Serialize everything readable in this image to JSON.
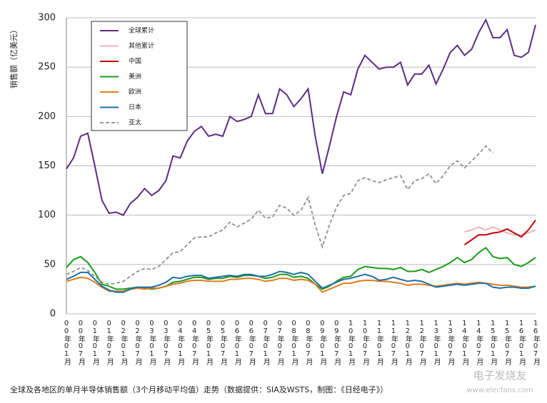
{
  "chart_data": {
    "type": "line",
    "y_label": "销售额（亿美元）",
    "caption": "全球及各地区的单月半导体销售额（3个月移动平均值）走势（数据提供：SIA及WSTS，制图：《日经电子》）",
    "watermark": [
      "电子发烧友",
      "www.elecfans.com"
    ],
    "categories": [
      "00年01月",
      null,
      "00年07月",
      null,
      "01年01月",
      null,
      "01年07月",
      null,
      "02年01月",
      null,
      "02年07月",
      null,
      "03年01月",
      null,
      "03年07月",
      null,
      "04年01月",
      null,
      "04年07月",
      null,
      "05年01月",
      null,
      "05年07月",
      null,
      "06年01月",
      null,
      "06年07月",
      null,
      "07年01月",
      null,
      "07年07月",
      null,
      "08年01月",
      null,
      "08年07月",
      null,
      "09年01月",
      null,
      "09年07月",
      null,
      "10年01月",
      null,
      "10年07月",
      null,
      "11年01月",
      null,
      "11年07月",
      null,
      "12年01月",
      null,
      "12年07月",
      null,
      "13年01月",
      null,
      "13年07月",
      null,
      "14年01月",
      null,
      "14年07月",
      null,
      "15年01月",
      null,
      "15年07月",
      null,
      "16年01月",
      null,
      "16年07月"
    ],
    "ylim": [
      0,
      300
    ],
    "yticks": [
      0,
      50,
      100,
      150,
      200,
      250,
      300
    ],
    "grid": true,
    "series": [
      {
        "name": "全球累计",
        "color": "#5b2c83",
        "values": [
          147,
          158,
          180,
          183,
          150,
          115,
          102,
          103,
          100,
          112,
          118,
          127,
          120,
          125,
          135,
          160,
          158,
          175,
          185,
          190,
          180,
          182,
          180,
          200,
          195,
          197,
          200,
          222,
          203,
          203,
          228,
          222,
          210,
          218,
          228,
          180,
          142,
          170,
          200,
          225,
          222,
          248,
          262,
          255,
          248,
          250,
          250,
          255,
          232,
          243,
          243,
          252,
          233,
          248,
          265,
          272,
          262,
          268,
          285,
          298,
          280,
          280,
          288,
          262,
          260,
          265,
          293
        ]
      },
      {
        "name": "其他累计",
        "color": "#e8b4b8",
        "values": [
          null,
          null,
          null,
          null,
          null,
          null,
          null,
          null,
          null,
          null,
          null,
          null,
          null,
          null,
          null,
          null,
          null,
          null,
          null,
          null,
          null,
          null,
          null,
          null,
          null,
          null,
          null,
          null,
          null,
          null,
          null,
          null,
          null,
          null,
          null,
          null,
          null,
          null,
          null,
          null,
          null,
          null,
          null,
          null,
          null,
          null,
          null,
          null,
          null,
          null,
          null,
          null,
          null,
          null,
          null,
          null,
          83,
          85,
          88,
          85,
          88,
          85,
          82,
          80,
          80,
          82,
          85
        ]
      },
      {
        "name": "中国",
        "color": "#c00000",
        "values": [
          null,
          null,
          null,
          null,
          null,
          null,
          null,
          null,
          null,
          null,
          null,
          null,
          null,
          null,
          null,
          null,
          null,
          null,
          null,
          null,
          null,
          null,
          null,
          null,
          null,
          null,
          null,
          null,
          null,
          null,
          null,
          null,
          null,
          null,
          null,
          null,
          null,
          null,
          null,
          null,
          null,
          null,
          null,
          null,
          null,
          null,
          null,
          null,
          null,
          null,
          null,
          null,
          null,
          null,
          null,
          null,
          70,
          75,
          80,
          80,
          82,
          83,
          86,
          82,
          78,
          85,
          95
        ]
      },
      {
        "name": "美洲",
        "color": "#1a9a1a",
        "values": [
          47,
          55,
          58,
          52,
          42,
          30,
          28,
          25,
          25,
          26,
          27,
          26,
          25,
          26,
          28,
          32,
          33,
          35,
          37,
          37,
          35,
          36,
          36,
          38,
          37,
          39,
          39,
          38,
          36,
          37,
          40,
          40,
          37,
          38,
          36,
          30,
          25,
          28,
          33,
          37,
          38,
          45,
          48,
          47,
          46,
          46,
          45,
          47,
          43,
          43,
          45,
          42,
          45,
          48,
          52,
          57,
          52,
          55,
          62,
          67,
          58,
          56,
          57,
          50,
          48,
          52,
          57
        ]
      },
      {
        "name": "欧洲",
        "color": "#e07b1a",
        "values": [
          33,
          35,
          37,
          36,
          32,
          27,
          23,
          23,
          23,
          25,
          26,
          25,
          26,
          26,
          28,
          30,
          31,
          33,
          34,
          34,
          33,
          33,
          33,
          35,
          35,
          36,
          36,
          35,
          33,
          34,
          36,
          36,
          34,
          35,
          34,
          30,
          22,
          25,
          28,
          31,
          31,
          33,
          34,
          34,
          33,
          33,
          32,
          31,
          29,
          30,
          30,
          29,
          28,
          29,
          30,
          31,
          30,
          31,
          32,
          31,
          30,
          29,
          29,
          28,
          27,
          27,
          28
        ]
      },
      {
        "name": "日本",
        "color": "#1f6fa8",
        "values": [
          35,
          38,
          42,
          42,
          35,
          28,
          24,
          22,
          22,
          25,
          27,
          27,
          27,
          29,
          32,
          37,
          36,
          38,
          39,
          39,
          36,
          37,
          38,
          39,
          38,
          40,
          40,
          38,
          38,
          40,
          43,
          42,
          40,
          42,
          40,
          33,
          26,
          29,
          32,
          35,
          36,
          38,
          40,
          38,
          34,
          35,
          37,
          35,
          33,
          34,
          33,
          30,
          27,
          28,
          29,
          30,
          29,
          30,
          31,
          31,
          27,
          26,
          27,
          27,
          26,
          26,
          28
        ]
      },
      {
        "name": "亚太",
        "color": "#999999",
        "line_style": "dashed",
        "values": [
          40,
          43,
          47,
          44,
          38,
          32,
          30,
          31,
          33,
          38,
          43,
          46,
          45,
          48,
          55,
          62,
          63,
          70,
          77,
          78,
          78,
          82,
          85,
          93,
          88,
          92,
          96,
          105,
          97,
          98,
          110,
          107,
          100,
          105,
          118,
          90,
          68,
          90,
          108,
          120,
          122,
          135,
          138,
          135,
          133,
          136,
          138,
          140,
          126,
          135,
          137,
          142,
          132,
          140,
          150,
          155,
          148,
          155,
          162,
          170,
          163,
          null,
          null,
          null,
          null,
          null,
          null
        ]
      }
    ]
  }
}
